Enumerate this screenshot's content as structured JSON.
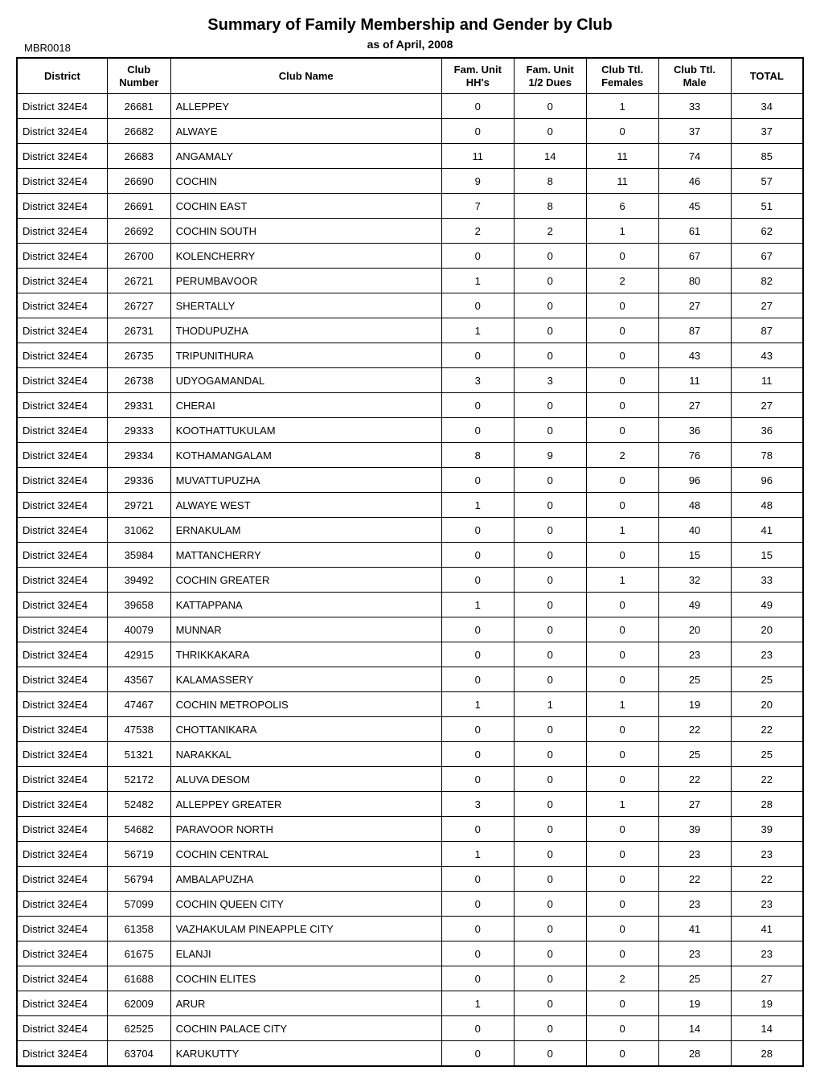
{
  "report": {
    "title": "Summary of Family Membership and Gender by Club",
    "as_of": "as of April, 2008",
    "id": "MBR0018"
  },
  "table": {
    "columns": {
      "district": "District",
      "club_number": "Club\nNumber",
      "club_name": "Club Name",
      "fam_unit_hhs": "Fam. Unit\nHH's",
      "fam_unit_half_dues": "Fam. Unit\n1/2 Dues",
      "club_ttl_females": "Club Ttl.\nFemales",
      "club_ttl_male": "Club Ttl.\nMale",
      "total": "TOTAL"
    },
    "rows": [
      {
        "district": "District 324E4",
        "club_number": "26681",
        "club_name": "ALLEPPEY",
        "hhs": "0",
        "half": "0",
        "fem": "1",
        "male": "33",
        "total": "34"
      },
      {
        "district": "District 324E4",
        "club_number": "26682",
        "club_name": "ALWAYE",
        "hhs": "0",
        "half": "0",
        "fem": "0",
        "male": "37",
        "total": "37"
      },
      {
        "district": "District 324E4",
        "club_number": "26683",
        "club_name": "ANGAMALY",
        "hhs": "11",
        "half": "14",
        "fem": "11",
        "male": "74",
        "total": "85"
      },
      {
        "district": "District 324E4",
        "club_number": "26690",
        "club_name": "COCHIN",
        "hhs": "9",
        "half": "8",
        "fem": "11",
        "male": "46",
        "total": "57"
      },
      {
        "district": "District 324E4",
        "club_number": "26691",
        "club_name": "COCHIN EAST",
        "hhs": "7",
        "half": "8",
        "fem": "6",
        "male": "45",
        "total": "51"
      },
      {
        "district": "District 324E4",
        "club_number": "26692",
        "club_name": "COCHIN SOUTH",
        "hhs": "2",
        "half": "2",
        "fem": "1",
        "male": "61",
        "total": "62"
      },
      {
        "district": "District 324E4",
        "club_number": "26700",
        "club_name": "KOLENCHERRY",
        "hhs": "0",
        "half": "0",
        "fem": "0",
        "male": "67",
        "total": "67"
      },
      {
        "district": "District 324E4",
        "club_number": "26721",
        "club_name": "PERUMBAVOOR",
        "hhs": "1",
        "half": "0",
        "fem": "2",
        "male": "80",
        "total": "82"
      },
      {
        "district": "District 324E4",
        "club_number": "26727",
        "club_name": "SHERTALLY",
        "hhs": "0",
        "half": "0",
        "fem": "0",
        "male": "27",
        "total": "27"
      },
      {
        "district": "District 324E4",
        "club_number": "26731",
        "club_name": "THODUPUZHA",
        "hhs": "1",
        "half": "0",
        "fem": "0",
        "male": "87",
        "total": "87"
      },
      {
        "district": "District 324E4",
        "club_number": "26735",
        "club_name": "TRIPUNITHURA",
        "hhs": "0",
        "half": "0",
        "fem": "0",
        "male": "43",
        "total": "43"
      },
      {
        "district": "District 324E4",
        "club_number": "26738",
        "club_name": "UDYOGAMANDAL",
        "hhs": "3",
        "half": "3",
        "fem": "0",
        "male": "11",
        "total": "11"
      },
      {
        "district": "District 324E4",
        "club_number": "29331",
        "club_name": "CHERAI",
        "hhs": "0",
        "half": "0",
        "fem": "0",
        "male": "27",
        "total": "27"
      },
      {
        "district": "District 324E4",
        "club_number": "29333",
        "club_name": "KOOTHATTUKULAM",
        "hhs": "0",
        "half": "0",
        "fem": "0",
        "male": "36",
        "total": "36"
      },
      {
        "district": "District 324E4",
        "club_number": "29334",
        "club_name": "KOTHAMANGALAM",
        "hhs": "8",
        "half": "9",
        "fem": "2",
        "male": "76",
        "total": "78"
      },
      {
        "district": "District 324E4",
        "club_number": "29336",
        "club_name": "MUVATTUPUZHA",
        "hhs": "0",
        "half": "0",
        "fem": "0",
        "male": "96",
        "total": "96"
      },
      {
        "district": "District 324E4",
        "club_number": "29721",
        "club_name": "ALWAYE WEST",
        "hhs": "1",
        "half": "0",
        "fem": "0",
        "male": "48",
        "total": "48"
      },
      {
        "district": "District 324E4",
        "club_number": "31062",
        "club_name": "ERNAKULAM",
        "hhs": "0",
        "half": "0",
        "fem": "1",
        "male": "40",
        "total": "41"
      },
      {
        "district": "District 324E4",
        "club_number": "35984",
        "club_name": "MATTANCHERRY",
        "hhs": "0",
        "half": "0",
        "fem": "0",
        "male": "15",
        "total": "15"
      },
      {
        "district": "District 324E4",
        "club_number": "39492",
        "club_name": "COCHIN GREATER",
        "hhs": "0",
        "half": "0",
        "fem": "1",
        "male": "32",
        "total": "33"
      },
      {
        "district": "District 324E4",
        "club_number": "39658",
        "club_name": "KATTAPPANA",
        "hhs": "1",
        "half": "0",
        "fem": "0",
        "male": "49",
        "total": "49"
      },
      {
        "district": "District 324E4",
        "club_number": "40079",
        "club_name": "MUNNAR",
        "hhs": "0",
        "half": "0",
        "fem": "0",
        "male": "20",
        "total": "20"
      },
      {
        "district": "District 324E4",
        "club_number": "42915",
        "club_name": "THRIKKAKARA",
        "hhs": "0",
        "half": "0",
        "fem": "0",
        "male": "23",
        "total": "23"
      },
      {
        "district": "District 324E4",
        "club_number": "43567",
        "club_name": "KALAMASSERY",
        "hhs": "0",
        "half": "0",
        "fem": "0",
        "male": "25",
        "total": "25"
      },
      {
        "district": "District 324E4",
        "club_number": "47467",
        "club_name": "COCHIN METROPOLIS",
        "hhs": "1",
        "half": "1",
        "fem": "1",
        "male": "19",
        "total": "20"
      },
      {
        "district": "District 324E4",
        "club_number": "47538",
        "club_name": "CHOTTANIKARA",
        "hhs": "0",
        "half": "0",
        "fem": "0",
        "male": "22",
        "total": "22"
      },
      {
        "district": "District 324E4",
        "club_number": "51321",
        "club_name": "NARAKKAL",
        "hhs": "0",
        "half": "0",
        "fem": "0",
        "male": "25",
        "total": "25"
      },
      {
        "district": "District 324E4",
        "club_number": "52172",
        "club_name": "ALUVA DESOM",
        "hhs": "0",
        "half": "0",
        "fem": "0",
        "male": "22",
        "total": "22"
      },
      {
        "district": "District 324E4",
        "club_number": "52482",
        "club_name": "ALLEPPEY GREATER",
        "hhs": "3",
        "half": "0",
        "fem": "1",
        "male": "27",
        "total": "28"
      },
      {
        "district": "District 324E4",
        "club_number": "54682",
        "club_name": "PARAVOOR NORTH",
        "hhs": "0",
        "half": "0",
        "fem": "0",
        "male": "39",
        "total": "39"
      },
      {
        "district": "District 324E4",
        "club_number": "56719",
        "club_name": "COCHIN CENTRAL",
        "hhs": "1",
        "half": "0",
        "fem": "0",
        "male": "23",
        "total": "23"
      },
      {
        "district": "District 324E4",
        "club_number": "56794",
        "club_name": "AMBALAPUZHA",
        "hhs": "0",
        "half": "0",
        "fem": "0",
        "male": "22",
        "total": "22"
      },
      {
        "district": "District 324E4",
        "club_number": "57099",
        "club_name": "COCHIN QUEEN CITY",
        "hhs": "0",
        "half": "0",
        "fem": "0",
        "male": "23",
        "total": "23"
      },
      {
        "district": "District 324E4",
        "club_number": "61358",
        "club_name": "VAZHAKULAM PINEAPPLE CITY",
        "hhs": "0",
        "half": "0",
        "fem": "0",
        "male": "41",
        "total": "41"
      },
      {
        "district": "District 324E4",
        "club_number": "61675",
        "club_name": "ELANJI",
        "hhs": "0",
        "half": "0",
        "fem": "0",
        "male": "23",
        "total": "23"
      },
      {
        "district": "District 324E4",
        "club_number": "61688",
        "club_name": "COCHIN ELITES",
        "hhs": "0",
        "half": "0",
        "fem": "2",
        "male": "25",
        "total": "27"
      },
      {
        "district": "District 324E4",
        "club_number": "62009",
        "club_name": "ARUR",
        "hhs": "1",
        "half": "0",
        "fem": "0",
        "male": "19",
        "total": "19"
      },
      {
        "district": "District 324E4",
        "club_number": "62525",
        "club_name": "COCHIN PALACE CITY",
        "hhs": "0",
        "half": "0",
        "fem": "0",
        "male": "14",
        "total": "14"
      },
      {
        "district": "District 324E4",
        "club_number": "63704",
        "club_name": "KARUKUTTY",
        "hhs": "0",
        "half": "0",
        "fem": "0",
        "male": "28",
        "total": "28"
      }
    ]
  }
}
